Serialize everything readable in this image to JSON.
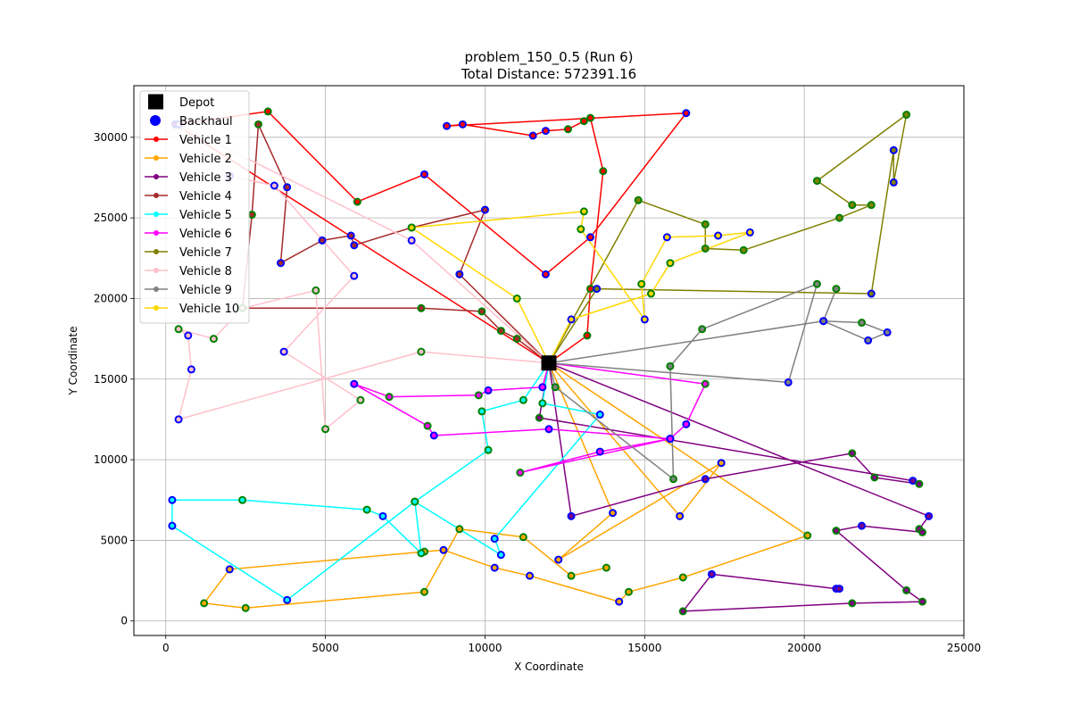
{
  "chart_data": {
    "type": "scatter",
    "title": "problem_150_0.5 (Run 6)",
    "subtitle": "Total Distance: 572391.16",
    "xlabel": "X Coordinate",
    "ylabel": "Y Coordinate",
    "xlim": [
      -1000,
      25000
    ],
    "ylim": [
      -900,
      33200
    ],
    "xticks": [
      0,
      5000,
      10000,
      15000,
      20000,
      25000
    ],
    "yticks": [
      0,
      5000,
      10000,
      15000,
      20000,
      25000,
      30000
    ],
    "grid": true,
    "legend_position": "top-left",
    "depot": {
      "name": "Depot",
      "x": 12000,
      "y": 16000,
      "color": "#000000"
    },
    "backhaul_legend": {
      "name": "Backhaul",
      "color": "#0000ff"
    },
    "linehaul_fill": "#008000",
    "series": [
      {
        "name": "Vehicle 1",
        "color": "#ff0000",
        "points": [
          [
            12000,
            16000
          ],
          [
            13200,
            17700
          ],
          [
            13300,
            20600
          ],
          [
            13700,
            27900
          ],
          [
            13300,
            31200
          ],
          [
            13100,
            31000
          ],
          [
            12600,
            30500
          ],
          [
            11900,
            30400
          ],
          [
            11500,
            30100
          ],
          [
            9300,
            30800
          ],
          [
            8800,
            30700
          ],
          [
            16300,
            31500
          ],
          [
            13300,
            23800
          ],
          [
            11900,
            21500
          ],
          [
            8100,
            27700
          ],
          [
            6000,
            26000
          ],
          [
            3200,
            31600
          ],
          [
            300,
            30800
          ],
          [
            12000,
            16000
          ]
        ],
        "stops": [
          "L",
          "L",
          "L",
          "L",
          "L",
          "L",
          "B",
          "B",
          "B",
          "B",
          "B",
          "B",
          "B",
          "B",
          "L",
          "L",
          "B"
        ]
      },
      {
        "name": "Vehicle 2",
        "color": "#ffa500",
        "points": [
          [
            12000,
            16000
          ],
          [
            16100,
            6500
          ],
          [
            17400,
            9800
          ],
          [
            12300,
            3800
          ],
          [
            14000,
            6700
          ],
          [
            12000,
            16000
          ],
          [
            20100,
            5300
          ],
          [
            16200,
            2700
          ],
          [
            14500,
            1800
          ],
          [
            14200,
            1200
          ],
          [
            11400,
            2800
          ],
          [
            10300,
            3300
          ],
          [
            8700,
            4400
          ],
          [
            8100,
            4300
          ],
          [
            2000,
            3200
          ],
          [
            1200,
            1100
          ],
          [
            2500,
            800
          ],
          [
            8100,
            1800
          ],
          [
            9200,
            5700
          ],
          [
            11200,
            5200
          ],
          [
            12700,
            2800
          ],
          [
            13800,
            3300
          ]
        ],
        "stops": [
          "B",
          "B",
          "B",
          "B",
          "L",
          "L",
          "L",
          "B",
          "B",
          "B",
          "B",
          "L",
          "B",
          "L",
          "L",
          "L",
          "L",
          "L",
          "L"
        ]
      },
      {
        "name": "Vehicle 3",
        "color": "#800080",
        "points": [
          [
            12000,
            16000
          ],
          [
            11700,
            12600
          ],
          [
            23400,
            8700
          ],
          [
            23600,
            8500
          ],
          [
            22200,
            8900
          ],
          [
            21500,
            10400
          ],
          [
            16900,
            8800
          ],
          [
            12700,
            6500
          ],
          [
            12000,
            16000
          ],
          [
            23900,
            6500
          ],
          [
            23600,
            5700
          ],
          [
            23700,
            5500
          ],
          [
            21800,
            5900
          ],
          [
            21000,
            5600
          ],
          [
            23200,
            1900
          ],
          [
            23700,
            1200
          ],
          [
            21500,
            1100
          ],
          [
            16200,
            600
          ],
          [
            17100,
            2900
          ],
          [
            21000,
            2000
          ],
          [
            21100,
            2000
          ]
        ],
        "stops": [
          "L",
          "B",
          "L",
          "L",
          "L",
          "B",
          "B",
          "B",
          "L",
          "L",
          "B",
          "L",
          "L",
          "L",
          "L",
          "L",
          "B",
          "B",
          "B"
        ]
      },
      {
        "name": "Vehicle 4",
        "color": "#a52a2a",
        "points": [
          [
            12000,
            16000
          ],
          [
            9200,
            21500
          ],
          [
            10000,
            25500
          ],
          [
            7700,
            24400
          ],
          [
            5900,
            23300
          ],
          [
            5800,
            23900
          ],
          [
            4900,
            23600
          ],
          [
            3600,
            22200
          ],
          [
            3800,
            26900
          ],
          [
            2900,
            30800
          ],
          [
            2700,
            25200
          ],
          [
            2400,
            19400
          ],
          [
            8000,
            19400
          ],
          [
            9900,
            19200
          ],
          [
            10500,
            18000
          ],
          [
            11000,
            17500
          ],
          [
            12000,
            16000
          ]
        ],
        "stops": [
          "B",
          "B",
          "L",
          "B",
          "B",
          "B",
          "B",
          "B",
          "L",
          "L",
          "L",
          "L",
          "L",
          "L",
          "L"
        ]
      },
      {
        "name": "Vehicle 5",
        "color": "#00ffff",
        "points": [
          [
            12000,
            16000
          ],
          [
            11800,
            13500
          ],
          [
            13600,
            12800
          ],
          [
            10300,
            5100
          ],
          [
            10500,
            4100
          ],
          [
            7800,
            7400
          ],
          [
            3800,
            1300
          ],
          [
            200,
            5900
          ],
          [
            200,
            7500
          ],
          [
            2400,
            7500
          ],
          [
            6300,
            6900
          ],
          [
            6800,
            6500
          ],
          [
            8000,
            4200
          ],
          [
            7800,
            7400
          ],
          [
            10100,
            10600
          ],
          [
            9900,
            13000
          ],
          [
            11200,
            13700
          ],
          [
            12000,
            16000
          ]
        ],
        "stops": [
          "L",
          "B",
          "B",
          "B",
          "L",
          "B",
          "B",
          "B",
          "L",
          "L",
          "B",
          "L",
          "L",
          "L",
          "L",
          "L"
        ]
      },
      {
        "name": "Vehicle 6",
        "color": "#ff00ff",
        "points": [
          [
            12000,
            16000
          ],
          [
            11800,
            14500
          ],
          [
            10100,
            14300
          ],
          [
            9800,
            14000
          ],
          [
            7000,
            13900
          ],
          [
            5900,
            14700
          ],
          [
            8200,
            12100
          ],
          [
            8400,
            11500
          ],
          [
            12000,
            11900
          ],
          [
            15800,
            11300
          ],
          [
            11100,
            9200
          ],
          [
            13600,
            10500
          ],
          [
            15800,
            11300
          ],
          [
            16300,
            12200
          ],
          [
            16900,
            14700
          ],
          [
            12000,
            16000
          ]
        ],
        "stops": [
          "B",
          "B",
          "L",
          "L",
          "B",
          "L",
          "B",
          "B",
          "B",
          "L",
          "B",
          "B",
          "B",
          "L"
        ]
      },
      {
        "name": "Vehicle 7",
        "color": "#808000",
        "points": [
          [
            12000,
            16000
          ],
          [
            14800,
            26100
          ],
          [
            16900,
            24600
          ],
          [
            16900,
            23100
          ],
          [
            18100,
            23000
          ],
          [
            21100,
            25000
          ],
          [
            22100,
            25800
          ],
          [
            21500,
            25800
          ],
          [
            20400,
            27300
          ],
          [
            23200,
            31400
          ],
          [
            22800,
            27200
          ],
          [
            22800,
            29200
          ],
          [
            22100,
            20300
          ],
          [
            13500,
            20600
          ],
          [
            12000,
            16000
          ]
        ],
        "stops": [
          "L",
          "L",
          "L",
          "L",
          "L",
          "L",
          "L",
          "L",
          "L",
          "B",
          "B",
          "B",
          "B"
        ]
      },
      {
        "name": "Vehicle 8",
        "color": "#ffc0cb",
        "points": [
          [
            12000,
            16000
          ],
          [
            8000,
            16700
          ],
          [
            400,
            12500
          ],
          [
            800,
            15600
          ],
          [
            700,
            17700
          ],
          [
            400,
            18100
          ],
          [
            1500,
            17500
          ],
          [
            2400,
            19400
          ],
          [
            4700,
            20500
          ],
          [
            5000,
            11900
          ],
          [
            6100,
            13700
          ],
          [
            3700,
            16700
          ],
          [
            5900,
            21400
          ],
          [
            3400,
            27000
          ],
          [
            2000,
            27600
          ],
          [
            400,
            30800
          ],
          [
            7700,
            23600
          ],
          [
            12000,
            16000
          ]
        ],
        "stops": [
          "L",
          "B",
          "B",
          "B",
          "L",
          "L",
          "L",
          "L",
          "L",
          "L",
          "B",
          "B",
          "B",
          "B",
          "B",
          "B"
        ]
      },
      {
        "name": "Vehicle 9",
        "color": "#808080",
        "points": [
          [
            12000,
            16000
          ],
          [
            12200,
            14500
          ],
          [
            15900,
            8800
          ],
          [
            15800,
            15800
          ],
          [
            16800,
            18100
          ],
          [
            20400,
            20900
          ],
          [
            19500,
            14800
          ],
          [
            12000,
            16000
          ],
          [
            20600,
            18600
          ],
          [
            21800,
            18500
          ],
          [
            22600,
            17900
          ],
          [
            22000,
            17400
          ],
          [
            20600,
            18600
          ],
          [
            21000,
            20600
          ]
        ],
        "stops": [
          "L",
          "L",
          "L",
          "L",
          "L",
          "B",
          "B",
          "L",
          "B",
          "B",
          "B"
        ]
      },
      {
        "name": "Vehicle 10",
        "color": "#ffd700",
        "points": [
          [
            12000,
            16000
          ],
          [
            11000,
            20000
          ],
          [
            7700,
            24400
          ],
          [
            13100,
            25400
          ],
          [
            13000,
            24300
          ],
          [
            15000,
            18700
          ],
          [
            14900,
            20900
          ],
          [
            15700,
            23800
          ],
          [
            17300,
            23900
          ],
          [
            18300,
            24100
          ],
          [
            15800,
            22200
          ],
          [
            15200,
            20300
          ],
          [
            12700,
            18700
          ],
          [
            12000,
            16000
          ]
        ],
        "stops": [
          "L",
          "L",
          "L",
          "L",
          "B",
          "L",
          "B",
          "B",
          "B",
          "L",
          "L",
          "B"
        ]
      }
    ]
  }
}
